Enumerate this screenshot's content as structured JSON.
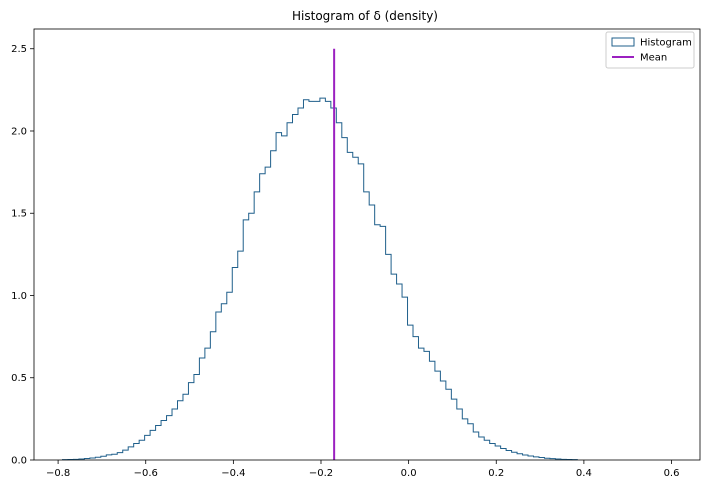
{
  "chart_data": {
    "type": "histogram",
    "title": "Histogram of δ (density)",
    "xlabel": "",
    "ylabel": "",
    "xlim": [
      -0.855,
      0.665
    ],
    "ylim": [
      0,
      2.62
    ],
    "xticks": [
      -0.8,
      -0.6,
      -0.4,
      -0.2,
      0.0,
      0.2,
      0.4,
      0.6
    ],
    "xtick_labels": [
      "−0.8",
      "−0.6",
      "−0.4",
      "−0.2",
      "0.0",
      "0.2",
      "0.4",
      "0.6"
    ],
    "yticks": [
      0.0,
      0.5,
      1.0,
      1.5,
      2.0,
      2.5
    ],
    "ytick_labels": [
      "0.0",
      "0.5",
      "1.0",
      "1.5",
      "2.0",
      "2.5"
    ],
    "grid": false,
    "legend_position": "top-right",
    "legend": [
      {
        "label": "Histogram",
        "kind": "step-outline",
        "color": "#1f5f8b"
      },
      {
        "label": "Mean",
        "kind": "line",
        "color": "#9b20c0"
      }
    ],
    "histogram": {
      "color": "#1f5f8b",
      "bin_start": -0.79,
      "bin_width": 0.0125,
      "densities": [
        0.002,
        0.003,
        0.004,
        0.006,
        0.009,
        0.012,
        0.017,
        0.023,
        0.031,
        0.035,
        0.045,
        0.06,
        0.08,
        0.1,
        0.12,
        0.15,
        0.18,
        0.21,
        0.24,
        0.27,
        0.31,
        0.36,
        0.4,
        0.47,
        0.52,
        0.62,
        0.68,
        0.78,
        0.9,
        0.95,
        1.02,
        1.17,
        1.27,
        1.46,
        1.5,
        1.63,
        1.74,
        1.78,
        1.88,
        1.99,
        1.97,
        2.05,
        2.1,
        2.14,
        2.19,
        2.18,
        2.18,
        2.2,
        2.18,
        2.14,
        2.05,
        1.96,
        1.87,
        1.84,
        1.8,
        1.63,
        1.55,
        1.43,
        1.42,
        1.25,
        1.13,
        1.07,
        0.99,
        0.82,
        0.75,
        0.68,
        0.66,
        0.6,
        0.54,
        0.48,
        0.43,
        0.37,
        0.31,
        0.25,
        0.22,
        0.17,
        0.14,
        0.12,
        0.1,
        0.085,
        0.07,
        0.058,
        0.047,
        0.038,
        0.03,
        0.024,
        0.019,
        0.015,
        0.011,
        0.008,
        0.006,
        0.004,
        0.003,
        0.002
      ]
    },
    "mean": {
      "value": -0.17,
      "ymax": 2.5,
      "color": "#9b20c0"
    }
  }
}
